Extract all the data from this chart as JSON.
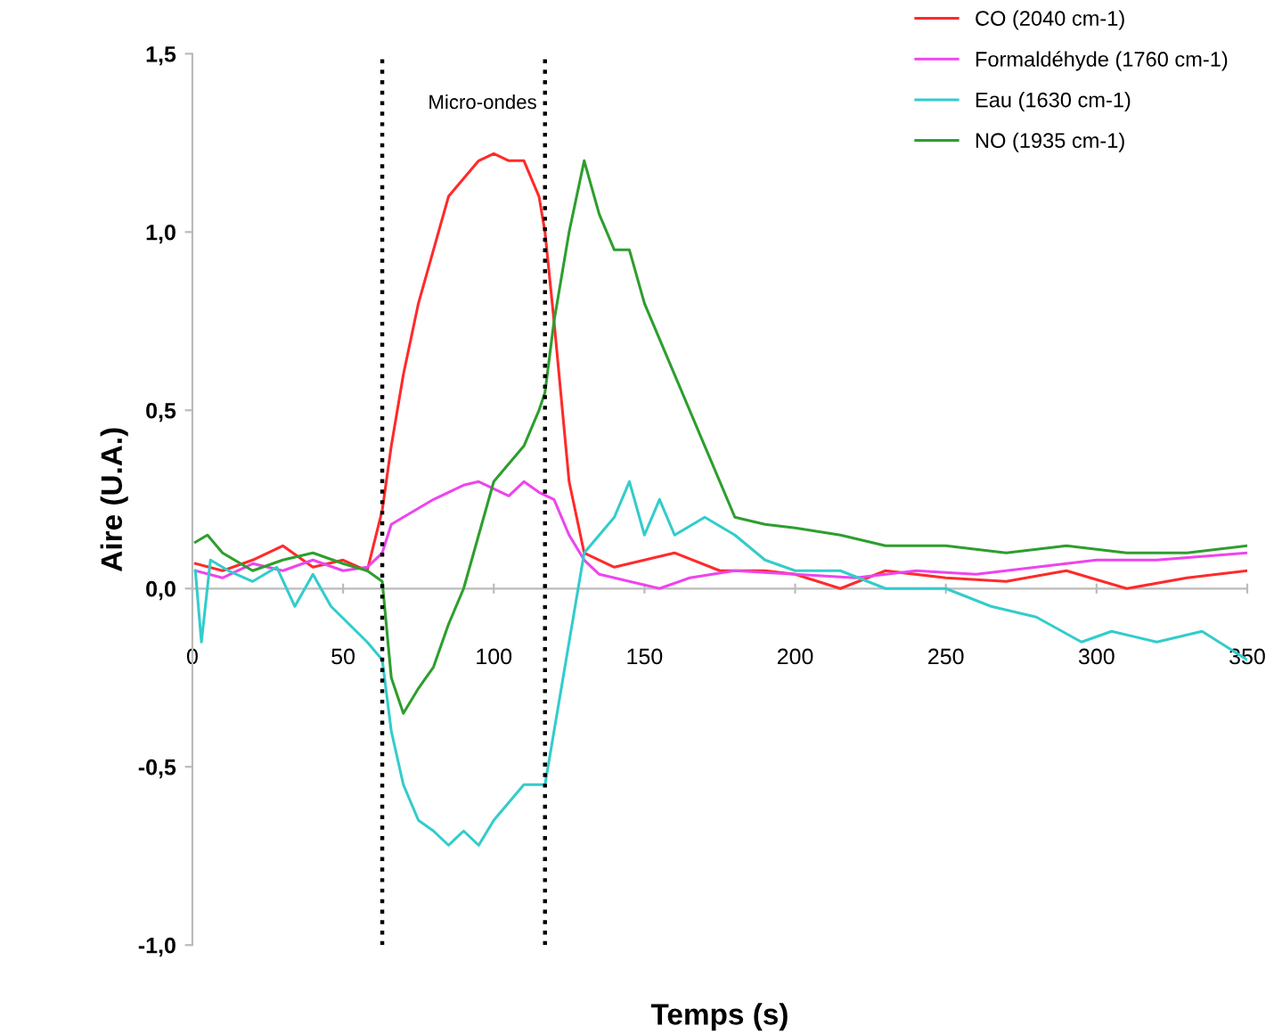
{
  "chart_data": {
    "type": "line",
    "xlabel": "Temps (s)",
    "ylabel": "Aire (U.A.)",
    "xlim": [
      0,
      350
    ],
    "xticks": [
      0,
      50,
      100,
      150,
      200,
      250,
      300,
      350
    ],
    "ylim": [
      -1.0,
      1.5
    ],
    "yticks": [
      {
        "value": -1.0,
        "label": "-1,0"
      },
      {
        "value": -0.5,
        "label": "-0,5"
      },
      {
        "value": 0.0,
        "label": "0,0"
      },
      {
        "value": 0.5,
        "label": "0,5"
      },
      {
        "value": 1.0,
        "label": "1,0"
      },
      {
        "value": 1.5,
        "label": "1,5"
      }
    ],
    "grid": false,
    "legend": "top right",
    "marker": "none",
    "line_style": "solid",
    "annotations": [
      "Micro-ondes"
    ],
    "ref_lines": [
      {
        "axis": "y",
        "value": 0,
        "label": null,
        "color": "#bbbbbb",
        "line_style": "solid"
      },
      {
        "axis": "x",
        "value": 63,
        "label": null,
        "color": "#000000",
        "line_style": "dotted"
      },
      {
        "axis": "x",
        "value": 117,
        "label": null,
        "color": "#000000",
        "line_style": "dotted"
      }
    ],
    "series": [
      {
        "name": "CO (2040 cm-1)",
        "color": "#ff2a2a",
        "x": [
          1,
          10,
          20,
          30,
          40,
          50,
          58,
          63,
          66,
          70,
          75,
          80,
          85,
          90,
          95,
          100,
          105,
          110,
          115,
          117,
          120,
          125,
          130,
          135,
          140,
          150,
          160,
          175,
          190,
          200,
          215,
          230,
          250,
          270,
          290,
          310,
          330,
          350
        ],
        "values": [
          0.07,
          0.05,
          0.08,
          0.12,
          0.06,
          0.08,
          0.05,
          0.22,
          0.4,
          0.6,
          0.8,
          0.95,
          1.1,
          1.15,
          1.2,
          1.22,
          1.2,
          1.2,
          1.1,
          1.0,
          0.75,
          0.3,
          0.1,
          0.08,
          0.06,
          0.08,
          0.1,
          0.05,
          0.05,
          0.04,
          0.0,
          0.05,
          0.03,
          0.02,
          0.05,
          0.0,
          0.03,
          0.05
        ]
      },
      {
        "name": "Formaldéhyde (1760 cm-1)",
        "color": "#ee44ee",
        "x": [
          1,
          10,
          20,
          30,
          40,
          50,
          58,
          63,
          66,
          70,
          80,
          90,
          95,
          100,
          105,
          110,
          115,
          120,
          125,
          130,
          135,
          145,
          155,
          165,
          180,
          200,
          220,
          240,
          260,
          280,
          300,
          320,
          350
        ],
        "values": [
          0.05,
          0.03,
          0.07,
          0.05,
          0.08,
          0.05,
          0.06,
          0.1,
          0.18,
          0.2,
          0.25,
          0.29,
          0.3,
          0.28,
          0.26,
          0.3,
          0.27,
          0.25,
          0.15,
          0.08,
          0.04,
          0.02,
          0.0,
          0.03,
          0.05,
          0.04,
          0.03,
          0.05,
          0.04,
          0.06,
          0.08,
          0.08,
          0.1
        ]
      },
      {
        "name": "Eau (1630 cm-1)",
        "color": "#33cccc",
        "x": [
          1,
          3,
          6,
          12,
          20,
          28,
          34,
          40,
          46,
          52,
          58,
          63,
          66,
          70,
          75,
          80,
          85,
          90,
          95,
          100,
          105,
          110,
          117,
          120,
          125,
          130,
          135,
          140,
          145,
          150,
          155,
          160,
          170,
          180,
          190,
          200,
          215,
          230,
          250,
          265,
          280,
          295,
          305,
          320,
          335,
          350
        ],
        "values": [
          0.05,
          -0.15,
          0.08,
          0.05,
          0.02,
          0.06,
          -0.05,
          0.04,
          -0.05,
          -0.1,
          -0.15,
          -0.2,
          -0.4,
          -0.55,
          -0.65,
          -0.68,
          -0.72,
          -0.68,
          -0.72,
          -0.65,
          -0.6,
          -0.55,
          -0.55,
          -0.4,
          -0.15,
          0.1,
          0.15,
          0.2,
          0.3,
          0.15,
          0.25,
          0.15,
          0.2,
          0.15,
          0.08,
          0.05,
          0.05,
          0.0,
          0.0,
          -0.05,
          -0.08,
          -0.15,
          -0.12,
          -0.15,
          -0.12,
          -0.2
        ]
      },
      {
        "name": "NO (1935 cm-1)",
        "color": "#2e9e2e",
        "x": [
          1,
          5,
          10,
          20,
          30,
          40,
          50,
          58,
          63,
          66,
          70,
          75,
          80,
          85,
          90,
          95,
          100,
          105,
          110,
          115,
          117,
          120,
          125,
          130,
          135,
          140,
          145,
          150,
          155,
          160,
          170,
          180,
          190,
          200,
          215,
          230,
          250,
          270,
          290,
          310,
          330,
          350
        ],
        "values": [
          0.13,
          0.15,
          0.1,
          0.05,
          0.08,
          0.1,
          0.07,
          0.05,
          0.02,
          -0.25,
          -0.35,
          -0.28,
          -0.22,
          -0.1,
          0.0,
          0.15,
          0.3,
          0.35,
          0.4,
          0.5,
          0.55,
          0.75,
          1.0,
          1.2,
          1.05,
          0.95,
          0.95,
          0.8,
          0.7,
          0.6,
          0.4,
          0.2,
          0.18,
          0.17,
          0.15,
          0.12,
          0.12,
          0.1,
          0.12,
          0.1,
          0.1,
          0.12
        ]
      }
    ]
  }
}
